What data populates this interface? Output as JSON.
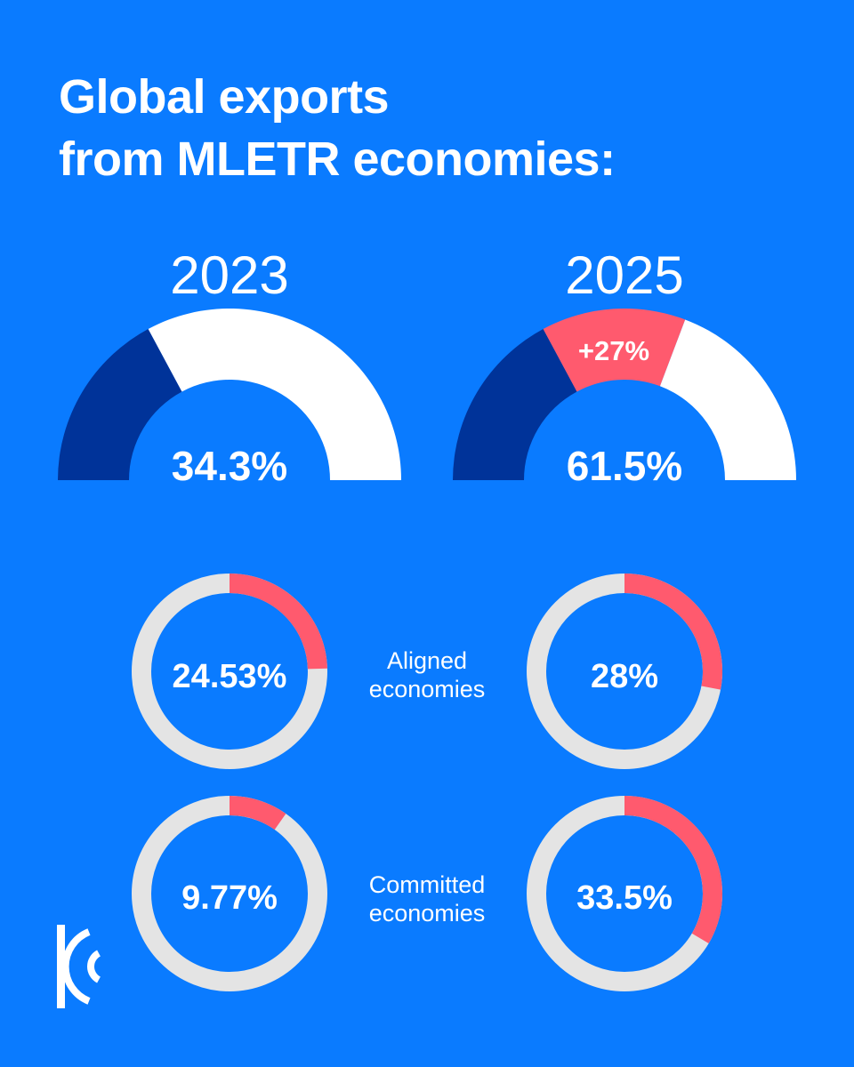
{
  "title": {
    "line1": "Global exports",
    "line2": "from MLETR economies:"
  },
  "colors": {
    "background": "#0A7BFF",
    "dark_segment": "#003399",
    "white_segment": "#FFFFFF",
    "accent": "#FF5A6E",
    "ring_track": "#E4E4E4"
  },
  "logo": {
    "icon": "brand-logo-icon"
  },
  "chart_data": [
    {
      "type": "pie",
      "variant": "half-donut",
      "title": "2023",
      "value_label": "34.3%",
      "segments": [
        {
          "value": 34.3,
          "color": "#003399"
        },
        {
          "value": 65.7,
          "color": "#FFFFFF"
        }
      ]
    },
    {
      "type": "pie",
      "variant": "half-donut",
      "title": "2025",
      "value_label": "61.5%",
      "delta_label": "+27%",
      "segments": [
        {
          "value": 34.3,
          "color": "#003399"
        },
        {
          "value": 27.2,
          "color": "#FF5A6E"
        },
        {
          "value": 38.5,
          "color": "#FFFFFF"
        }
      ]
    },
    {
      "type": "pie",
      "variant": "donut",
      "rows": [
        {
          "label_lines": [
            "Aligned",
            "economies"
          ],
          "values": [
            {
              "year": "2023",
              "value": 24.53,
              "value_label": "24.53%"
            },
            {
              "year": "2025",
              "value": 28,
              "value_label": "28%"
            }
          ]
        },
        {
          "label_lines": [
            "Committed",
            "economies"
          ],
          "values": [
            {
              "year": "2023",
              "value": 9.77,
              "value_label": "9.77%"
            },
            {
              "year": "2025",
              "value": 33.5,
              "value_label": "33.5%"
            }
          ]
        }
      ]
    }
  ]
}
